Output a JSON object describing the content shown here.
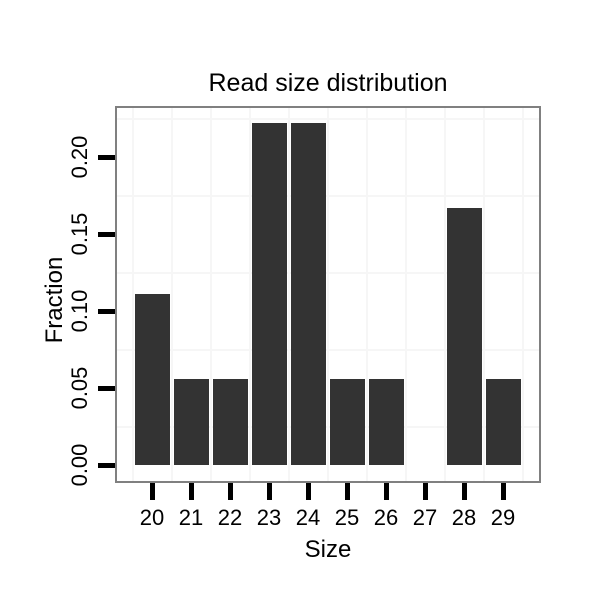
{
  "chart_data": {
    "type": "bar",
    "title": "Read size distribution",
    "xlabel": "Size",
    "ylabel": "Fraction",
    "categories": [
      20,
      21,
      22,
      23,
      24,
      25,
      26,
      27,
      28,
      29
    ],
    "values": [
      0.1111,
      0.0556,
      0.0556,
      0.2222,
      0.2222,
      0.0556,
      0.0556,
      0,
      0.1667,
      0.0556
    ],
    "x_tick_labels": [
      "20",
      "21",
      "22",
      "23",
      "24",
      "25",
      "26",
      "27",
      "28",
      "29"
    ],
    "y_ticks": [
      {
        "value": 0.0,
        "label": "0.00"
      },
      {
        "value": 0.05,
        "label": "0.05"
      },
      {
        "value": 0.1,
        "label": "0.10"
      },
      {
        "value": 0.15,
        "label": "0.15"
      },
      {
        "value": 0.2,
        "label": "0.20"
      }
    ],
    "ylim": [
      -0.011,
      0.233
    ],
    "grid": {
      "y_minor": [
        0.025,
        0.075,
        0.125,
        0.175,
        0.225
      ],
      "x_minor": [
        19.5,
        20.5,
        21.5,
        22.5,
        23.5,
        24.5,
        25.5,
        26.5,
        27.5,
        28.5,
        29.5
      ],
      "major_visible": false
    },
    "legend_position": "none",
    "colors": {
      "bar": "#333333",
      "grid": "#f6f6f6",
      "panel_border": "#808080",
      "panel_bg": "#ffffff",
      "background": "#ffffff",
      "tick": "#000000",
      "text": "#000000"
    }
  }
}
